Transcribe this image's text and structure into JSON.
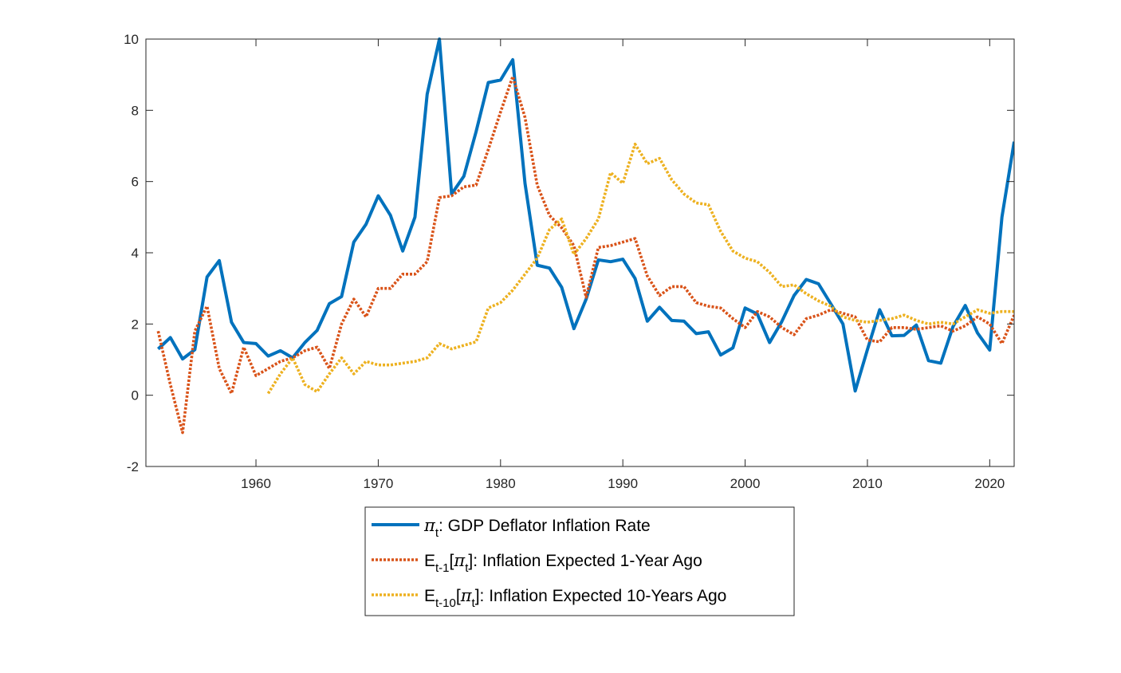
{
  "chart_data": {
    "type": "line",
    "title": "",
    "xlabel": "",
    "ylabel": "",
    "xlim": [
      1951,
      2022
    ],
    "ylim": [
      -2,
      10
    ],
    "xticks": [
      1960,
      1970,
      1980,
      1990,
      2000,
      2010,
      2020
    ],
    "xtick_labels": [
      "1960",
      "1970",
      "1980",
      "1990",
      "2000",
      "2010",
      "2020"
    ],
    "yticks": [
      -2,
      0,
      2,
      4,
      6,
      8,
      10
    ],
    "ytick_labels": [
      "-2",
      "0",
      "2",
      "4",
      "6",
      "8",
      "10"
    ],
    "grid": false,
    "legend_position": "bottom-center-outside",
    "series": [
      {
        "color": "#0072BD",
        "style": "solid",
        "legend": {
          "symbol": "π",
          "symbol_sub": "t",
          "text": ": GDP Deflator Inflation Rate"
        },
        "x": [
          1952,
          1953,
          1954,
          1955,
          1956,
          1957,
          1958,
          1959,
          1960,
          1961,
          1962,
          1963,
          1964,
          1965,
          1966,
          1967,
          1968,
          1969,
          1970,
          1971,
          1972,
          1973,
          1974,
          1975,
          1976,
          1977,
          1978,
          1979,
          1980,
          1981,
          1982,
          1983,
          1984,
          1985,
          1986,
          1987,
          1988,
          1989,
          1990,
          1991,
          1992,
          1993,
          1994,
          1995,
          1996,
          1997,
          1998,
          1999,
          2000,
          2001,
          2002,
          2003,
          2004,
          2005,
          2006,
          2007,
          2008,
          2009,
          2010,
          2011,
          2012,
          2013,
          2014,
          2015,
          2016,
          2017,
          2018,
          2019,
          2020,
          2021,
          2022
        ],
        "y": [
          1.3,
          1.62,
          1.02,
          1.28,
          3.32,
          3.78,
          2.05,
          1.48,
          1.45,
          1.1,
          1.25,
          1.05,
          1.48,
          1.82,
          2.57,
          2.77,
          4.3,
          4.8,
          5.6,
          5.05,
          4.05,
          5.0,
          8.45,
          10.0,
          5.65,
          6.15,
          7.4,
          8.78,
          8.85,
          9.42,
          5.95,
          3.65,
          3.57,
          3.03,
          1.87,
          2.7,
          3.8,
          3.75,
          3.82,
          3.28,
          2.08,
          2.47,
          2.1,
          2.08,
          1.73,
          1.78,
          1.13,
          1.33,
          2.45,
          2.28,
          1.48,
          2.07,
          2.8,
          3.25,
          3.13,
          2.57,
          2.0,
          0.12,
          1.28,
          2.4,
          1.67,
          1.68,
          1.97,
          0.97,
          0.9,
          1.93,
          2.52,
          1.75,
          1.27,
          5.0,
          7.12
        ]
      },
      {
        "color": "#D95319",
        "style": "dotted",
        "legend": {
          "symbol": "E",
          "symbol_sub": "t-1",
          "text": "[π",
          "text_sub": "t",
          "text_tail": "]: Inflation Expected 1-Year Ago"
        },
        "x": [
          1952,
          1953,
          1954,
          1955,
          1956,
          1957,
          1958,
          1959,
          1960,
          1961,
          1962,
          1963,
          1964,
          1965,
          1966,
          1967,
          1968,
          1969,
          1970,
          1971,
          1972,
          1973,
          1974,
          1975,
          1976,
          1977,
          1978,
          1979,
          1980,
          1981,
          1982,
          1983,
          1984,
          1985,
          1986,
          1987,
          1988,
          1989,
          1990,
          1991,
          1992,
          1993,
          1994,
          1995,
          1996,
          1997,
          1998,
          1999,
          2000,
          2001,
          2002,
          2003,
          2004,
          2005,
          2006,
          2007,
          2008,
          2009,
          2010,
          2011,
          2012,
          2013,
          2014,
          2015,
          2016,
          2017,
          2018,
          2019,
          2020,
          2021,
          2022
        ],
        "y": [
          1.8,
          0.3,
          -1.05,
          1.8,
          2.5,
          0.75,
          0.05,
          1.35,
          0.55,
          0.75,
          0.95,
          1.05,
          1.25,
          1.35,
          0.75,
          2.0,
          2.7,
          2.2,
          3.0,
          3.0,
          3.4,
          3.4,
          3.75,
          5.55,
          5.6,
          5.85,
          5.9,
          6.9,
          7.95,
          8.95,
          7.8,
          5.9,
          5.05,
          4.7,
          4.2,
          2.75,
          4.15,
          4.2,
          4.3,
          4.4,
          3.35,
          2.8,
          3.05,
          3.05,
          2.6,
          2.5,
          2.45,
          2.15,
          1.9,
          2.35,
          2.2,
          1.9,
          1.7,
          2.15,
          2.25,
          2.4,
          2.3,
          2.2,
          1.55,
          1.5,
          1.9,
          1.9,
          1.85,
          1.9,
          1.95,
          1.8,
          1.95,
          2.2,
          2.0,
          1.45,
          2.25
        ]
      },
      {
        "color": "#EDB120",
        "style": "dotted",
        "legend": {
          "symbol": "E",
          "symbol_sub": "t-10",
          "text": "[π",
          "text_sub": "t",
          "text_tail": "]: Inflation Expected 10-Years Ago"
        },
        "x": [
          1961,
          1962,
          1963,
          1964,
          1965,
          1966,
          1967,
          1968,
          1969,
          1970,
          1971,
          1972,
          1973,
          1974,
          1975,
          1976,
          1977,
          1978,
          1979,
          1980,
          1981,
          1982,
          1983,
          1984,
          1985,
          1986,
          1987,
          1988,
          1989,
          1990,
          1991,
          1992,
          1993,
          1994,
          1995,
          1996,
          1997,
          1998,
          1999,
          2000,
          2001,
          2002,
          2003,
          2004,
          2005,
          2006,
          2007,
          2008,
          2009,
          2010,
          2011,
          2012,
          2013,
          2014,
          2015,
          2016,
          2017,
          2018,
          2019,
          2020,
          2021,
          2022
        ],
        "y": [
          0.05,
          0.6,
          1.05,
          0.3,
          0.1,
          0.6,
          1.05,
          0.6,
          0.95,
          0.85,
          0.85,
          0.9,
          0.95,
          1.05,
          1.45,
          1.3,
          1.4,
          1.5,
          2.45,
          2.6,
          2.95,
          3.4,
          3.85,
          4.65,
          4.95,
          3.95,
          4.4,
          4.95,
          6.25,
          5.95,
          7.05,
          6.5,
          6.65,
          6.05,
          5.65,
          5.4,
          5.35,
          4.6,
          4.05,
          3.85,
          3.75,
          3.45,
          3.05,
          3.1,
          2.85,
          2.65,
          2.5,
          2.2,
          2.1,
          2.05,
          2.1,
          2.15,
          2.25,
          2.1,
          2.0,
          2.05,
          2.0,
          2.2,
          2.4,
          2.3,
          2.35,
          2.35
        ]
      }
    ]
  }
}
